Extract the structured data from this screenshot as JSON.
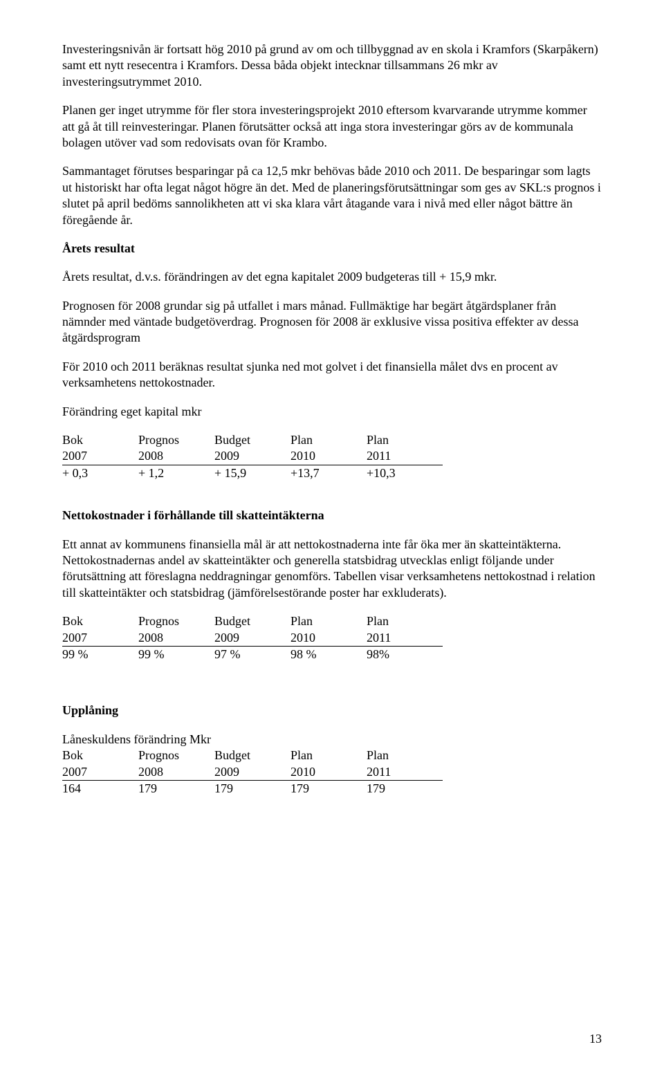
{
  "p1": "Investeringsnivån är fortsatt hög 2010 på grund av om och tillbyggnad av en skola i Kramfors (Skarpåkern) samt ett nytt resecentra i Kramfors. Dessa båda objekt intecknar tillsammans 26 mkr av investeringsutrymmet 2010.",
  "p2": "Planen ger inget utrymme för fler stora investeringsprojekt 2010 eftersom kvarvarande utrymme kommer att gå åt till reinvesteringar. Planen förutsätter också att inga stora investeringar görs av de kommunala bolagen utöver vad som redovisats ovan för Krambo.",
  "p3": "Sammantaget förutses besparingar på ca 12,5 mkr behövas både 2010 och 2011. De besparingar som lagts ut historiskt har ofta legat något högre än det. Med de planeringsförutsättningar som ges av SKL:s prognos i slutet på april bedöms sannolikheten att vi ska klara vårt åtagande vara i nivå med eller något bättre än föregående år.",
  "h1": "Årets resultat",
  "p4": "Årets resultat, d.v.s. förändringen av det egna kapitalet 2009 budgeteras till + 15,9 mkr.",
  "p5": "Prognosen för 2008 grundar sig på utfallet i mars månad. Fullmäktige har begärt åtgärdsplaner från nämnder med väntade budgetöverdrag. Prognosen för 2008 är exklusive vissa positiva effekter av dessa åtgärdsprogram",
  "p6": "För 2010 och 2011 beräknas resultat sjunka ned mot golvet i det finansiella målet dvs en procent av verksamhetens nettokostnader.",
  "p7": "Förändring eget kapital mkr",
  "table1": {
    "header": [
      "Bok",
      "Prognos",
      "Budget",
      "Plan",
      "Plan"
    ],
    "years": [
      "2007",
      "2008",
      "2009",
      "2010",
      "2011"
    ],
    "values": [
      "+ 0,3",
      "+ 1,2",
      "+ 15,9",
      "+13,7",
      "+10,3"
    ]
  },
  "h2": "Nettokostnader i förhållande till skatteintäkterna",
  "p8": "Ett annat av kommunens finansiella mål är att nettokostnaderna inte får öka mer än skatteintäkterna. Nettokostnadernas andel av skatteintäkter och generella statsbidrag utvecklas enligt  följande under förutsättning att föreslagna neddragningar genomförs. Tabellen visar verksamhetens nettokostnad i relation till skatteintäkter och statsbidrag (jämförelsestörande poster har exkluderats).",
  "table2": {
    "header": [
      "Bok",
      "Prognos",
      "Budget",
      "Plan",
      "Plan"
    ],
    "years": [
      "2007",
      "2008",
      "2009",
      "2010",
      "2011"
    ],
    "values": [
      "99 %",
      "99 %",
      "97 %",
      "98 %",
      "98%"
    ]
  },
  "h3": "Upplåning",
  "p9": "Låneskuldens förändring Mkr",
  "table3": {
    "header": [
      "Bok",
      "Prognos",
      "Budget",
      "Plan",
      "Plan"
    ],
    "years": [
      "2007",
      "2008",
      "2009",
      "2010",
      "2011"
    ],
    "values": [
      "164",
      "179",
      "179",
      "179",
      "179"
    ]
  },
  "pageNumber": "13"
}
